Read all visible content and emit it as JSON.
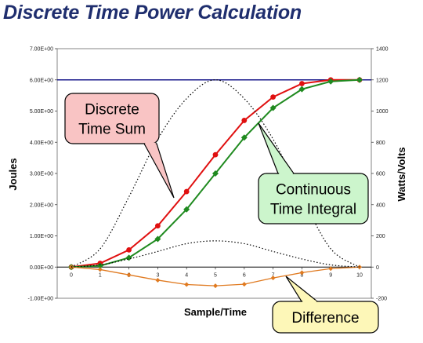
{
  "title": "Discrete Time Power Calculation",
  "chart_data": {
    "type": "line",
    "title": "Discrete Time Power Calculation",
    "xlabel": "Sample/Time",
    "ylabel": "Joules",
    "y2label": "Watts/Volts",
    "xlim": [
      0,
      10
    ],
    "ylim": [
      -1,
      7
    ],
    "y2lim": [
      -200,
      1400
    ],
    "x": [
      0,
      1,
      2,
      3,
      4,
      5,
      6,
      7,
      8,
      9,
      10
    ],
    "x_tick_labels": [
      "0",
      "1",
      "2",
      "3",
      "4",
      "5",
      "6",
      "7",
      "8",
      "9",
      "10"
    ],
    "y_tick_labels": [
      "7.00E+00",
      "6.00E+00",
      "5.00E+00",
      "4.00E+00",
      "3.00E+00",
      "2.00E+00",
      "1.00E+00",
      "0.00E+00",
      "-1.00E+00"
    ],
    "y2_tick_labels": [
      "1400",
      "1200",
      "1000",
      "800",
      "600",
      "400",
      "200",
      "0",
      "-200"
    ],
    "reference_line": {
      "axis": "left",
      "value": 6.0,
      "color": "#1a1a8c"
    },
    "grid": false,
    "series": [
      {
        "axis": "left",
        "color": "#e01010",
        "marker": "circle",
        "values": [
          0.0,
          0.12,
          0.55,
          1.32,
          2.42,
          3.6,
          4.7,
          5.45,
          5.88,
          6.0,
          6.0
        ]
      },
      {
        "axis": "left",
        "color": "#1f8a1f",
        "marker": "diamond",
        "values": [
          0.0,
          0.04,
          0.3,
          0.9,
          1.85,
          3.0,
          4.15,
          5.1,
          5.7,
          5.95,
          6.0
        ]
      },
      {
        "axis": "left",
        "color": "#e07a20",
        "marker": "diamond",
        "values": [
          0.0,
          -0.08,
          -0.25,
          -0.42,
          -0.56,
          -0.6,
          -0.55,
          -0.35,
          -0.18,
          -0.05,
          0.0
        ]
      },
      {
        "axis": "right",
        "color": "#000000",
        "style": "dotted",
        "values": [
          0,
          117,
          450,
          820,
          1080,
          1200,
          1080,
          820,
          450,
          117,
          0
        ]
      },
      {
        "axis": "right",
        "color": "#000000",
        "style": "dotted",
        "values": [
          0,
          14,
          52,
          100,
          150,
          168,
          150,
          100,
          52,
          14,
          0
        ]
      }
    ],
    "annotations": [
      {
        "text": [
          "Discrete",
          "Time Sum"
        ],
        "fill": "#f9c4c4",
        "points_to_series": 0
      },
      {
        "text": [
          "Continuous",
          "Time Integral"
        ],
        "fill": "#ccf5cc",
        "points_to_series": 1
      },
      {
        "text": [
          "Difference"
        ],
        "fill": "#fdf7b8",
        "points_to_series": 2
      }
    ]
  }
}
